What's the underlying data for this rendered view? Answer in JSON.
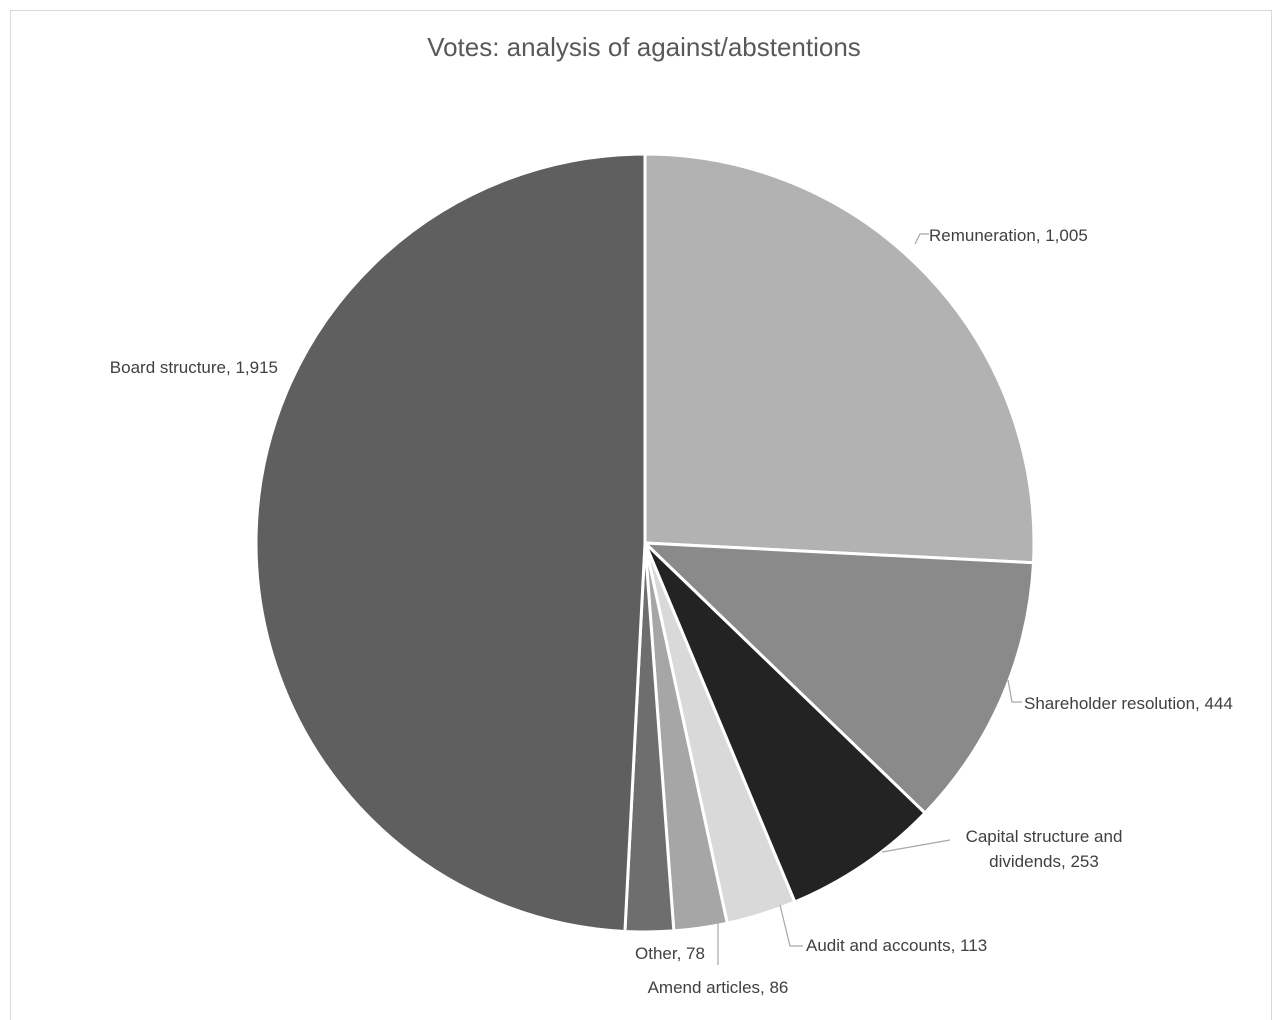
{
  "chart_data": {
    "type": "pie",
    "title": "Votes: analysis of against/abstentions",
    "slices": [
      {
        "label": "Remuneration",
        "value": 1005,
        "value_label": "1,005",
        "color": "#b2b2b2"
      },
      {
        "label": "Shareholder resolution",
        "value": 444,
        "value_label": "444",
        "color": "#8a8a8a"
      },
      {
        "label": "Capital structure and dividends",
        "value": 253,
        "value_label": "253",
        "color": "#232323"
      },
      {
        "label": "Audit and accounts",
        "value": 113,
        "value_label": "113",
        "color": "#d9d9d9"
      },
      {
        "label": "Amend articles",
        "value": 86,
        "value_label": "86",
        "color": "#a6a6a6"
      },
      {
        "label": "Other",
        "value": 78,
        "value_label": "78",
        "color": "#6e6e6e"
      },
      {
        "label": "Board structure",
        "value": 1915,
        "value_label": "1,915",
        "color": "#5f5f5f"
      }
    ],
    "legend": "none"
  }
}
